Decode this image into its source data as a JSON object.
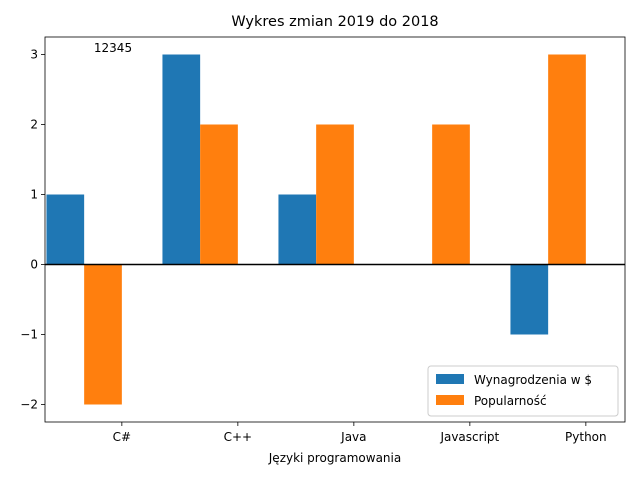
{
  "chart_data": {
    "type": "bar",
    "title": "Wykres zmian 2019 do 2018",
    "xlabel": "Języki programowania",
    "ylabel": "",
    "categories": [
      "C#",
      "C++",
      "Java",
      "Javascript",
      "Python"
    ],
    "series": [
      {
        "name": "Wynagrodzenia w $",
        "values": [
          1,
          3,
          1,
          0,
          -1
        ],
        "color": "#1f77b4"
      },
      {
        "name": "Popularność",
        "values": [
          -2,
          2,
          2,
          2,
          3
        ],
        "color": "#ff7f0e"
      }
    ],
    "ylim": [
      -2.25,
      3.25
    ],
    "yticks": [
      -2,
      -1,
      0,
      1,
      2,
      3
    ],
    "ytick_labels": [
      "−2",
      "−1",
      "0",
      "1",
      "2",
      "3"
    ],
    "annotation": "12345",
    "legend_position": "lower-right",
    "grid": false,
    "zero_line": true
  }
}
